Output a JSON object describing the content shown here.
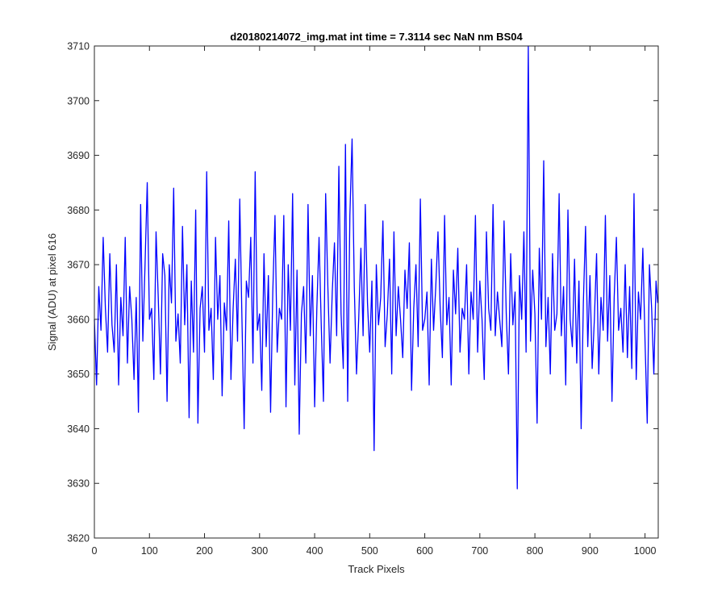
{
  "chart_data": {
    "type": "line",
    "title": "d20180214072_img.mat int time = 7.3114 sec  NaN nm BS04",
    "xlabel": "Track Pixels",
    "ylabel": "Signal (ADU) at pixel 616",
    "xlim": [
      0,
      1024
    ],
    "ylim": [
      3620,
      3710
    ],
    "xticks": [
      0,
      100,
      200,
      300,
      400,
      500,
      600,
      700,
      800,
      900,
      1000
    ],
    "yticks": [
      3620,
      3630,
      3640,
      3650,
      3660,
      3670,
      3680,
      3690,
      3700,
      3710
    ],
    "grid": false,
    "series": [
      {
        "color": "#0000ff",
        "x": [
          0,
          4,
          8,
          12,
          16,
          20,
          24,
          28,
          32,
          36,
          40,
          44,
          48,
          52,
          56,
          60,
          64,
          68,
          72,
          76,
          80,
          84,
          88,
          92,
          96,
          100,
          104,
          108,
          112,
          116,
          120,
          124,
          128,
          132,
          136,
          140,
          144,
          148,
          152,
          156,
          160,
          164,
          168,
          172,
          176,
          180,
          184,
          188,
          192,
          196,
          200,
          204,
          208,
          212,
          216,
          220,
          224,
          228,
          232,
          236,
          240,
          244,
          248,
          252,
          256,
          260,
          264,
          268,
          272,
          276,
          280,
          284,
          288,
          292,
          296,
          300,
          304,
          308,
          312,
          316,
          320,
          324,
          328,
          332,
          336,
          340,
          344,
          348,
          352,
          356,
          360,
          364,
          368,
          372,
          376,
          380,
          384,
          388,
          392,
          396,
          400,
          404,
          408,
          412,
          416,
          420,
          424,
          428,
          432,
          436,
          440,
          444,
          448,
          452,
          456,
          460,
          464,
          468,
          472,
          476,
          480,
          484,
          488,
          492,
          496,
          500,
          504,
          508,
          512,
          516,
          520,
          524,
          528,
          532,
          536,
          540,
          544,
          548,
          552,
          556,
          560,
          564,
          568,
          572,
          576,
          580,
          584,
          588,
          592,
          596,
          600,
          604,
          608,
          612,
          616,
          620,
          624,
          628,
          632,
          636,
          640,
          644,
          648,
          652,
          656,
          660,
          664,
          668,
          672,
          676,
          680,
          684,
          688,
          692,
          696,
          700,
          704,
          708,
          712,
          716,
          720,
          724,
          728,
          732,
          736,
          740,
          744,
          748,
          752,
          756,
          760,
          764,
          768,
          772,
          776,
          780,
          784,
          788,
          792,
          796,
          800,
          804,
          808,
          812,
          816,
          820,
          824,
          828,
          832,
          836,
          840,
          844,
          848,
          852,
          856,
          860,
          864,
          868,
          872,
          876,
          880,
          884,
          888,
          892,
          896,
          900,
          904,
          908,
          912,
          916,
          920,
          924,
          928,
          932,
          936,
          940,
          944,
          948,
          952,
          956,
          960,
          964,
          968,
          972,
          976,
          980,
          984,
          988,
          992,
          996,
          1000,
          1004,
          1008,
          1012,
          1016,
          1020,
          1023
        ],
        "values": [
          3660,
          3648,
          3666,
          3658,
          3675,
          3662,
          3654,
          3672,
          3659,
          3654,
          3670,
          3648,
          3664,
          3657,
          3675,
          3652,
          3666,
          3660,
          3649,
          3664,
          3643,
          3681,
          3656,
          3670,
          3685,
          3660,
          3662,
          3649,
          3676,
          3664,
          3650,
          3672,
          3668,
          3645,
          3670,
          3663,
          3684,
          3656,
          3661,
          3652,
          3677,
          3659,
          3670,
          3642,
          3667,
          3654,
          3680,
          3641,
          3662,
          3666,
          3654,
          3687,
          3658,
          3662,
          3649,
          3675,
          3660,
          3668,
          3646,
          3663,
          3658,
          3678,
          3649,
          3662,
          3671,
          3656,
          3682,
          3660,
          3640,
          3667,
          3664,
          3675,
          3652,
          3687,
          3658,
          3661,
          3647,
          3672,
          3655,
          3668,
          3643,
          3665,
          3679,
          3654,
          3662,
          3660,
          3679,
          3644,
          3670,
          3658,
          3683,
          3648,
          3669,
          3639,
          3661,
          3666,
          3652,
          3681,
          3657,
          3668,
          3644,
          3662,
          3675,
          3659,
          3645,
          3683,
          3666,
          3652,
          3665,
          3674,
          3657,
          3688,
          3661,
          3651,
          3692,
          3645,
          3679,
          3693,
          3666,
          3650,
          3660,
          3673,
          3657,
          3681,
          3663,
          3654,
          3667,
          3636,
          3670,
          3659,
          3664,
          3678,
          3655,
          3661,
          3671,
          3650,
          3676,
          3657,
          3666,
          3660,
          3653,
          3669,
          3662,
          3674,
          3647,
          3662,
          3670,
          3655,
          3682,
          3658,
          3660,
          3665,
          3648,
          3671,
          3658,
          3666,
          3676,
          3662,
          3653,
          3679,
          3659,
          3664,
          3648,
          3669,
          3661,
          3673,
          3654,
          3662,
          3660,
          3670,
          3650,
          3665,
          3660,
          3679,
          3654,
          3667,
          3660,
          3649,
          3676,
          3662,
          3658,
          3681,
          3657,
          3665,
          3660,
          3655,
          3678,
          3661,
          3650,
          3672,
          3659,
          3665,
          3629,
          3668,
          3660,
          3676,
          3654,
          3710,
          3656,
          3669,
          3661,
          3641,
          3673,
          3660,
          3689,
          3655,
          3664,
          3650,
          3672,
          3658,
          3661,
          3683,
          3657,
          3666,
          3648,
          3680,
          3660,
          3655,
          3671,
          3652,
          3667,
          3640,
          3663,
          3677,
          3655,
          3668,
          3651,
          3660,
          3672,
          3650,
          3664,
          3658,
          3679,
          3656,
          3668,
          3645,
          3664,
          3675,
          3658,
          3662,
          3654,
          3670,
          3653,
          3666,
          3651,
          3683,
          3649,
          3665,
          3660,
          3673,
          3656,
          3641,
          3670,
          3662,
          3650,
          3667,
          3663
        ]
      }
    ]
  }
}
